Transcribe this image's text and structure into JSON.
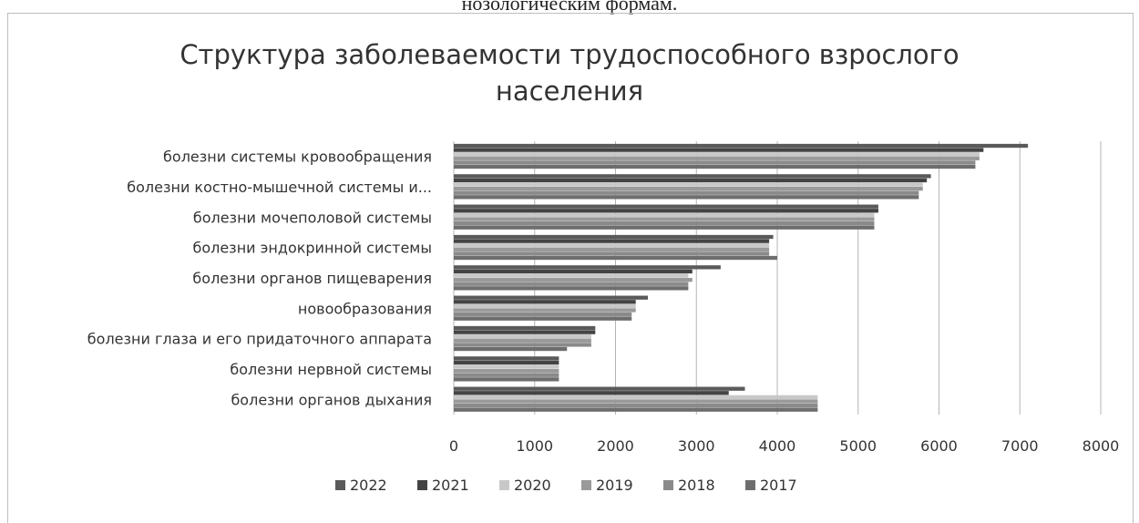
{
  "page": {
    "heading_fragment": "нозологическим формам."
  },
  "chart_data": {
    "type": "bar",
    "orientation": "horizontal",
    "title": "Структура заболеваемости трудоспособного взрослого населения",
    "title_lines": [
      "Структура заболеваемости трудоспособного взрослого",
      "населения"
    ],
    "categories": [
      "болезни системы кровообращения",
      "болезни костно-мышечной системы и...",
      "болезни мочеполовой системы",
      "болезни эндокринной системы",
      "болезни органов пищеварения",
      "новообразования",
      "болезни глаза и его придаточного аппарата",
      "болезни нервной системы",
      "болезни органов дыхания"
    ],
    "series": [
      {
        "name": "2022",
        "color": "#5a5a5a",
        "values": [
          7100,
          5900,
          5250,
          3950,
          3300,
          2400,
          1750,
          1300,
          3600
        ]
      },
      {
        "name": "2021",
        "color": "#444444",
        "values": [
          6550,
          5850,
          5250,
          3900,
          2950,
          2250,
          1750,
          1300,
          3400
        ]
      },
      {
        "name": "2020",
        "color": "#c8c8c8",
        "values": [
          6500,
          5800,
          5200,
          3900,
          2900,
          2250,
          1700,
          1300,
          4500
        ]
      },
      {
        "name": "2019",
        "color": "#9a9a9a",
        "values": [
          6500,
          5800,
          5200,
          3900,
          2950,
          2250,
          1700,
          1300,
          4500
        ]
      },
      {
        "name": "2018",
        "color": "#8a8a8a",
        "values": [
          6450,
          5750,
          5200,
          3900,
          2900,
          2200,
          1700,
          1300,
          4500
        ]
      },
      {
        "name": "2017",
        "color": "#6e6e6e",
        "values": [
          6450,
          5750,
          5200,
          4000,
          2900,
          2200,
          1400,
          1300,
          4500
        ]
      }
    ],
    "x_ticks": [
      "0",
      "1000",
      "2000",
      "3000",
      "4000",
      "5000",
      "6000",
      "7000",
      "8000"
    ],
    "xlim": [
      0,
      8000
    ],
    "grid": "vertical",
    "legend_position": "bottom"
  }
}
